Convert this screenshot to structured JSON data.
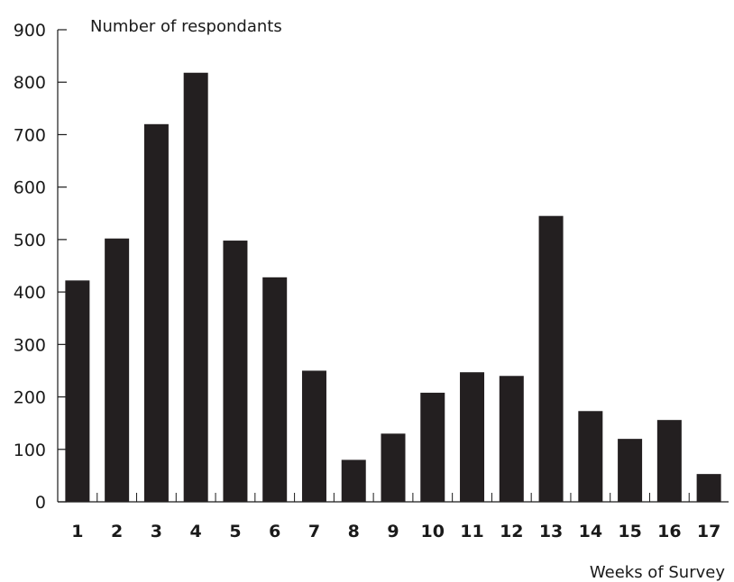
{
  "chart_data": {
    "type": "bar",
    "categories": [
      "1",
      "2",
      "3",
      "4",
      "5",
      "6",
      "7",
      "8",
      "9",
      "10",
      "11",
      "12",
      "13",
      "14",
      "15",
      "16",
      "17"
    ],
    "values": [
      422,
      502,
      720,
      818,
      498,
      428,
      250,
      80,
      130,
      208,
      247,
      240,
      545,
      173,
      120,
      156,
      53
    ],
    "ylabel": "Number of respondants",
    "xlabel": "Weeks of Survey",
    "ylim": [
      0,
      900
    ],
    "yticks": [
      0,
      100,
      200,
      300,
      400,
      500,
      600,
      700,
      800,
      900
    ],
    "grid": false,
    "bar_color": "#231f20"
  }
}
